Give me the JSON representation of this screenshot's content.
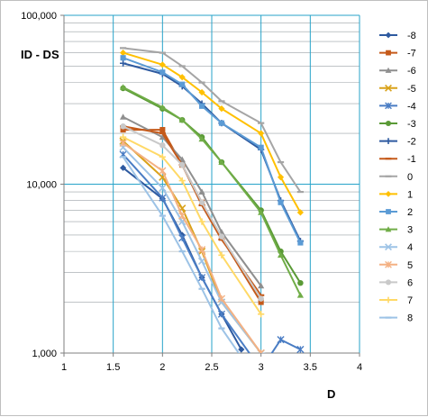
{
  "chart_data": {
    "type": "line",
    "title": "",
    "ylabel": "ID - DS",
    "xlabel": "D",
    "x_scale": "linear",
    "y_scale": "log",
    "xlim": [
      1,
      4
    ],
    "ylim": [
      1000,
      100000
    ],
    "x_ticks": [
      "1",
      "1.5",
      "2",
      "2.5",
      "3",
      "3.5",
      "4"
    ],
    "y_ticks": [
      "1,000",
      "10,000",
      "100,000"
    ],
    "grid": true,
    "legend_position": "right",
    "series": [
      {
        "name": "-8",
        "color": "#2e5aa0",
        "marker": "diamond",
        "x": [
          1.6,
          2.0,
          2.2,
          2.4,
          2.6,
          2.8
        ],
        "y": [
          12500,
          8200,
          5000,
          2800,
          1700,
          1050
        ]
      },
      {
        "name": "-7",
        "color": "#c55a1a",
        "marker": "square",
        "x": [
          1.6,
          2.0,
          2.2,
          2.4,
          2.6,
          3.0
        ],
        "y": [
          21000,
          21000,
          13000,
          7800,
          4800,
          2000
        ]
      },
      {
        "name": "-6",
        "color": "#8f8f8f",
        "marker": "triangle",
        "x": [
          1.6,
          2.0,
          2.2,
          2.4,
          2.6,
          3.0
        ],
        "y": [
          25000,
          19000,
          14000,
          9000,
          5200,
          2500
        ]
      },
      {
        "name": "-5",
        "color": "#d9a21a",
        "marker": "x",
        "x": [
          1.6,
          2.0,
          2.2,
          2.4,
          2.6,
          3.0
        ],
        "y": [
          18000,
          11000,
          7200,
          4000,
          2000,
          1000
        ]
      },
      {
        "name": "-4",
        "color": "#4a7dc4",
        "marker": "star",
        "x": [
          1.6,
          2.0,
          2.2,
          2.4,
          2.6,
          3.0,
          3.2,
          3.4
        ],
        "y": [
          15000,
          8300,
          4800,
          2800,
          1700,
          800,
          1200,
          1050
        ]
      },
      {
        "name": "-3",
        "color": "#5a9a36",
        "marker": "circle",
        "x": [
          1.6,
          2.0,
          2.2,
          2.4,
          2.6,
          3.0,
          3.2,
          3.4
        ],
        "y": [
          37000,
          28000,
          24000,
          19000,
          13500,
          7000,
          4000,
          2600
        ]
      },
      {
        "name": "-2",
        "color": "#2e5aa0",
        "marker": "plus",
        "x": [
          1.6,
          2.0,
          2.2,
          2.4,
          2.6,
          3.0,
          3.2,
          3.4
        ],
        "y": [
          52000,
          45000,
          38000,
          30000,
          23000,
          16000,
          8000,
          4600
        ]
      },
      {
        "name": "-1",
        "color": "#c55a1a",
        "marker": "dash",
        "x": [
          1.6,
          2.0,
          2.2,
          2.4,
          2.6,
          3.0
        ],
        "y": [
          22000,
          20000,
          13000,
          7500,
          4700,
          2200
        ]
      },
      {
        "name": "0",
        "color": "#a5a5a5",
        "marker": "dash",
        "x": [
          1.6,
          2.0,
          2.2,
          2.4,
          2.6,
          3.0,
          3.2,
          3.4
        ],
        "y": [
          64000,
          60000,
          50000,
          40000,
          31000,
          23000,
          13500,
          9000
        ]
      },
      {
        "name": "1",
        "color": "#ffc000",
        "marker": "diamond",
        "x": [
          1.6,
          2.0,
          2.2,
          2.4,
          2.6,
          3.0,
          3.2,
          3.4
        ],
        "y": [
          60000,
          51000,
          43000,
          35000,
          28000,
          20000,
          11000,
          6800
        ]
      },
      {
        "name": "2",
        "color": "#5b9bd5",
        "marker": "square",
        "x": [
          1.6,
          2.0,
          2.2,
          2.4,
          2.6,
          3.0,
          3.2,
          3.4
        ],
        "y": [
          56000,
          46000,
          39000,
          29000,
          23000,
          16500,
          7800,
          4500
        ]
      },
      {
        "name": "3",
        "color": "#70ad47",
        "marker": "triangle",
        "x": [
          1.6,
          2.0,
          2.2,
          2.4,
          2.6,
          3.0,
          3.2,
          3.4
        ],
        "y": [
          37500,
          28500,
          24000,
          18500,
          13500,
          6800,
          3800,
          2200
        ]
      },
      {
        "name": "4",
        "color": "#9dc3e6",
        "marker": "x",
        "x": [
          1.6,
          2.0,
          2.2,
          2.4,
          2.6,
          3.0,
          3.2,
          3.4
        ],
        "y": [
          16500,
          9500,
          6000,
          3500,
          2000,
          1000,
          950,
          900
        ]
      },
      {
        "name": "5",
        "color": "#f4b183",
        "marker": "star",
        "x": [
          1.6,
          2.0,
          2.2,
          2.4,
          2.6,
          3.0
        ],
        "y": [
          17500,
          12000,
          6500,
          4100,
          2100,
          1000
        ]
      },
      {
        "name": "6",
        "color": "#c9c9c9",
        "marker": "circle",
        "x": [
          1.6,
          2.0,
          2.2,
          2.4,
          2.6,
          3.0
        ],
        "y": [
          22000,
          17000,
          13000,
          7800,
          4900,
          2100
        ]
      },
      {
        "name": "7",
        "color": "#ffd966",
        "marker": "plus",
        "x": [
          1.6,
          2.0,
          2.2,
          2.4,
          2.6,
          3.0
        ],
        "y": [
          19000,
          14500,
          10500,
          6000,
          3800,
          1700
        ]
      },
      {
        "name": "8",
        "color": "#9dc3e6",
        "marker": "dash",
        "x": [
          1.6,
          2.0,
          2.2,
          2.4,
          2.6,
          2.8
        ],
        "y": [
          14500,
          6500,
          4000,
          2400,
          1400,
          950
        ]
      }
    ]
  }
}
